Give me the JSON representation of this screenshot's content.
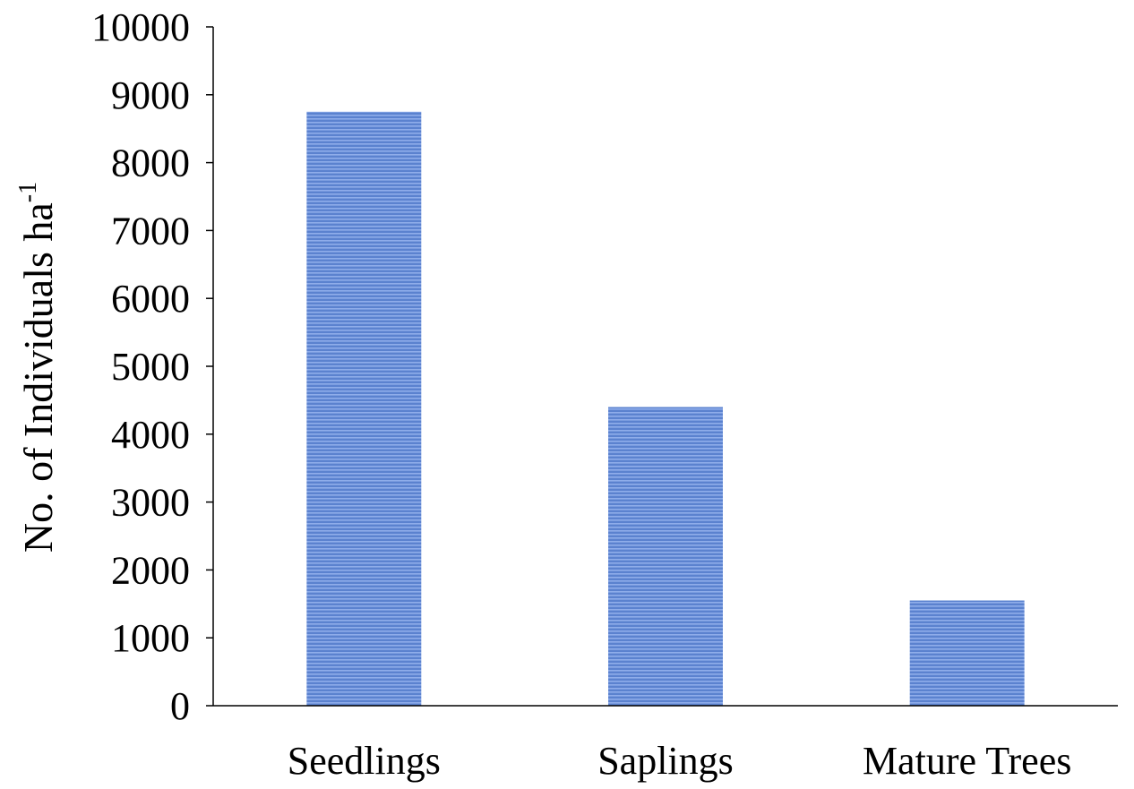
{
  "chart_data": {
    "type": "bar",
    "title": "",
    "xlabel": "",
    "ylabel": {
      "main": "No. of Individuals ha",
      "superscript": "-1"
    },
    "categories": [
      "Seedlings",
      "Saplings",
      "Mature Trees"
    ],
    "series": [
      {
        "values": [
          8750,
          4400,
          1550
        ]
      }
    ],
    "ylim": [
      0,
      10000
    ],
    "yticks": [
      0,
      1000,
      2000,
      3000,
      4000,
      5000,
      6000,
      7000,
      8000,
      9000,
      10000
    ],
    "grid": false,
    "legend": "none",
    "colors": {
      "bar_fill": "#5b82cf",
      "bar_stripe": "#8fadea",
      "axis": "#000000"
    }
  }
}
